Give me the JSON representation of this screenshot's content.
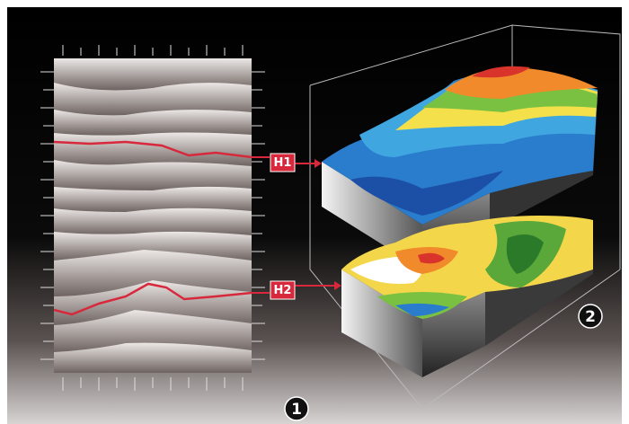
{
  "horizons": {
    "h1": "H1",
    "h2": "H2"
  },
  "markers": {
    "one": "1",
    "two": "2"
  }
}
